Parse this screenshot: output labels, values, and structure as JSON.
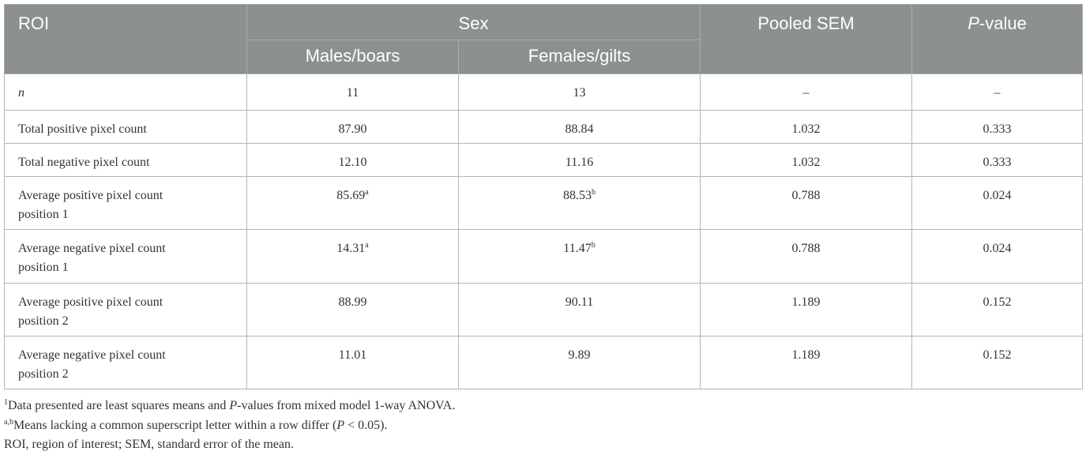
{
  "header": {
    "columns": [
      [
        {
          "text": "ROI"
        }
      ],
      [
        {
          "text": "Sex"
        }
      ],
      [
        {
          "text": "Pooled SEM"
        }
      ],
      [
        {
          "text": "P",
          "style": "italic"
        },
        {
          "text": "-value"
        }
      ]
    ],
    "subcolumns": [
      [
        {
          "text": "Males/boars"
        }
      ],
      [
        {
          "text": "Females/gilts"
        }
      ]
    ]
  },
  "table": {
    "rows": [
      [
        [
          {
            "text": "n",
            "style": "italic"
          }
        ],
        [
          {
            "text": "11"
          }
        ],
        [
          {
            "text": "13"
          }
        ],
        [
          {
            "text": "–"
          }
        ],
        [
          {
            "text": "–"
          }
        ]
      ],
      [
        [
          {
            "text": "Total positive pixel count"
          }
        ],
        [
          {
            "text": "87.90"
          }
        ],
        [
          {
            "text": "88.84"
          }
        ],
        [
          {
            "text": "1.032"
          }
        ],
        [
          {
            "text": "0.333"
          }
        ]
      ],
      [
        [
          {
            "text": "Total negative pixel count"
          }
        ],
        [
          {
            "text": "12.10"
          }
        ],
        [
          {
            "text": "11.16"
          }
        ],
        [
          {
            "text": "1.032"
          }
        ],
        [
          {
            "text": "0.333"
          }
        ]
      ],
      [
        [
          {
            "text": "Average positive pixel count position 1"
          }
        ],
        [
          {
            "text": "85.69"
          },
          {
            "text": "a",
            "style": "sup"
          }
        ],
        [
          {
            "text": "88.53"
          },
          {
            "text": "b",
            "style": "sup"
          }
        ],
        [
          {
            "text": "0.788"
          }
        ],
        [
          {
            "text": "0.024"
          }
        ]
      ],
      [
        [
          {
            "text": "Average negative pixel count position 1"
          }
        ],
        [
          {
            "text": "14.31"
          },
          {
            "text": "a",
            "style": "sup"
          }
        ],
        [
          {
            "text": "11.47"
          },
          {
            "text": "b",
            "style": "sup"
          }
        ],
        [
          {
            "text": "0.788"
          }
        ],
        [
          {
            "text": "0.024"
          }
        ]
      ],
      [
        [
          {
            "text": "Average positive pixel count position 2"
          }
        ],
        [
          {
            "text": "88.99"
          }
        ],
        [
          {
            "text": "90.11"
          }
        ],
        [
          {
            "text": "1.189"
          }
        ],
        [
          {
            "text": "0.152"
          }
        ]
      ],
      [
        [
          {
            "text": "Average negative pixel count position 2"
          }
        ],
        [
          {
            "text": "11.01"
          }
        ],
        [
          {
            "text": "9.89"
          }
        ],
        [
          {
            "text": "1.189"
          }
        ],
        [
          {
            "text": "0.152"
          }
        ]
      ]
    ]
  },
  "footnotes": [
    [
      {
        "text": "1",
        "style": "sup"
      },
      {
        "text": "Data presented are least squares means and "
      },
      {
        "text": "P",
        "style": "italic"
      },
      {
        "text": "-values from mixed model 1-way ANOVA."
      }
    ],
    [
      {
        "text": "a,b",
        "style": "sup"
      },
      {
        "text": "Means lacking a common superscript letter within a row differ ("
      },
      {
        "text": "P",
        "style": "italic"
      },
      {
        "text": " < 0.05)."
      }
    ],
    [
      {
        "text": "ROI, region of interest; SEM, standard error of the mean."
      }
    ]
  ]
}
